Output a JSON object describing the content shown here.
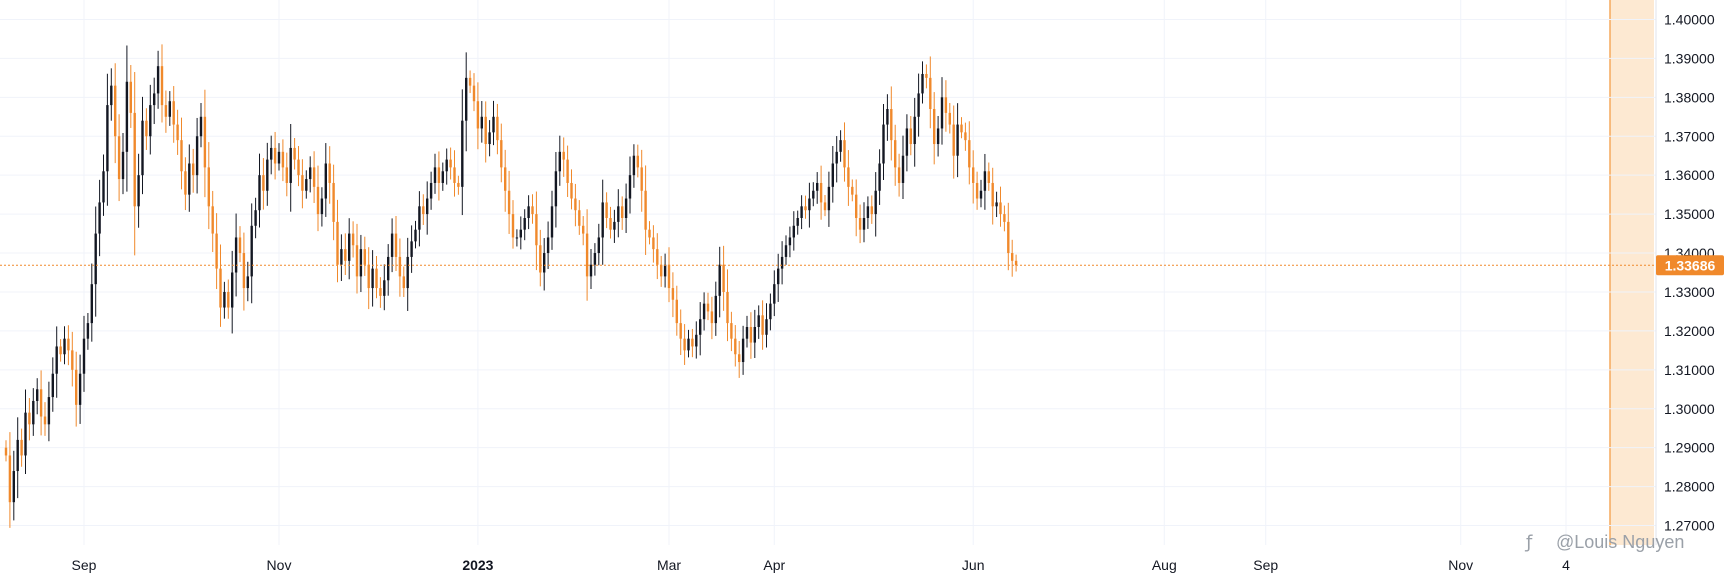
{
  "watermark": "@Louis Nguyen",
  "current_price_label": "1.33686",
  "colors": {
    "up": "#131722",
    "down": "#f0892b",
    "grid": "#f0f3fa",
    "pricetag": "#f0892b",
    "highlight": "#fde9d2",
    "highlight_edge": "#f5a95c"
  },
  "chart_data": {
    "type": "candlestick",
    "title": "",
    "ylim": [
      1.265,
      1.405
    ],
    "y_ticks": [
      "1.27000",
      "1.28000",
      "1.29000",
      "1.30000",
      "1.31000",
      "1.32000",
      "1.33000",
      "1.34000",
      "1.35000",
      "1.36000",
      "1.37000",
      "1.38000",
      "1.39000",
      "1.40000"
    ],
    "x_ticks": [
      {
        "label": "Sep",
        "bar": 20,
        "bold": false
      },
      {
        "label": "Nov",
        "bar": 70,
        "bold": false
      },
      {
        "label": "2023",
        "bar": 121,
        "bold": true
      },
      {
        "label": "Mar",
        "bar": 170,
        "bold": false
      },
      {
        "label": "Apr",
        "bar": 197,
        "bold": false
      },
      {
        "label": "Jun",
        "bar": 248,
        "bold": false
      },
      {
        "label": "Aug",
        "bar": 297,
        "bold": false
      },
      {
        "label": "Sep",
        "bar": 323,
        "bold": false
      },
      {
        "label": "Nov",
        "bar": 373,
        "bold": false
      },
      {
        "label": "4",
        "bar": 400,
        "bold": false
      }
    ],
    "last_price": 1.33686,
    "closes": [
      1.288,
      1.276,
      1.284,
      1.292,
      1.288,
      1.299,
      1.296,
      1.302,
      1.305,
      1.298,
      1.296,
      1.303,
      1.309,
      1.316,
      1.314,
      1.318,
      1.315,
      1.31,
      1.301,
      1.309,
      1.318,
      1.322,
      1.332,
      1.345,
      1.353,
      1.361,
      1.378,
      1.383,
      1.37,
      1.359,
      1.366,
      1.384,
      1.376,
      1.352,
      1.36,
      1.374,
      1.37,
      1.378,
      1.381,
      1.388,
      1.378,
      1.375,
      1.379,
      1.373,
      1.369,
      1.361,
      1.355,
      1.363,
      1.36,
      1.37,
      1.375,
      1.362,
      1.352,
      1.345,
      1.336,
      1.326,
      1.33,
      1.326,
      1.335,
      1.344,
      1.34,
      1.331,
      1.334,
      1.347,
      1.351,
      1.36,
      1.356,
      1.364,
      1.367,
      1.363,
      1.366,
      1.362,
      1.358,
      1.367,
      1.364,
      1.36,
      1.356,
      1.359,
      1.362,
      1.357,
      1.35,
      1.354,
      1.363,
      1.358,
      1.348,
      1.337,
      1.341,
      1.338,
      1.345,
      1.342,
      1.334,
      1.341,
      1.337,
      1.331,
      1.336,
      1.331,
      1.329,
      1.333,
      1.339,
      1.345,
      1.339,
      1.334,
      1.331,
      1.339,
      1.343,
      1.346,
      1.352,
      1.35,
      1.354,
      1.358,
      1.362,
      1.358,
      1.361,
      1.364,
      1.362,
      1.358,
      1.357,
      1.374,
      1.385,
      1.383,
      1.379,
      1.372,
      1.375,
      1.368,
      1.371,
      1.375,
      1.369,
      1.362,
      1.356,
      1.35,
      1.344,
      1.344,
      1.346,
      1.349,
      1.352,
      1.35,
      1.342,
      1.335,
      1.34,
      1.344,
      1.352,
      1.361,
      1.366,
      1.364,
      1.358,
      1.354,
      1.351,
      1.347,
      1.345,
      1.334,
      1.337,
      1.34,
      1.344,
      1.353,
      1.349,
      1.346,
      1.348,
      1.352,
      1.349,
      1.354,
      1.36,
      1.365,
      1.362,
      1.356,
      1.346,
      1.344,
      1.341,
      1.337,
      1.334,
      1.337,
      1.331,
      1.328,
      1.322,
      1.318,
      1.315,
      1.318,
      1.316,
      1.319,
      1.323,
      1.327,
      1.325,
      1.322,
      1.329,
      1.337,
      1.33,
      1.322,
      1.318,
      1.314,
      1.312,
      1.318,
      1.321,
      1.317,
      1.321,
      1.324,
      1.319,
      1.323,
      1.327,
      1.332,
      1.336,
      1.339,
      1.342,
      1.344,
      1.347,
      1.349,
      1.352,
      1.351,
      1.354,
      1.356,
      1.358,
      1.353,
      1.351,
      1.357,
      1.363,
      1.366,
      1.369,
      1.362,
      1.357,
      1.355,
      1.349,
      1.346,
      1.349,
      1.352,
      1.35,
      1.356,
      1.363,
      1.373,
      1.377,
      1.369,
      1.362,
      1.358,
      1.365,
      1.372,
      1.368,
      1.375,
      1.381,
      1.386,
      1.385,
      1.377,
      1.368,
      1.372,
      1.38,
      1.376,
      1.373,
      1.365,
      1.373,
      1.371,
      1.369,
      1.362,
      1.358,
      1.354,
      1.356,
      1.361,
      1.358,
      1.352,
      1.353,
      1.35,
      1.348,
      1.34,
      1.338,
      1.33686
    ]
  }
}
